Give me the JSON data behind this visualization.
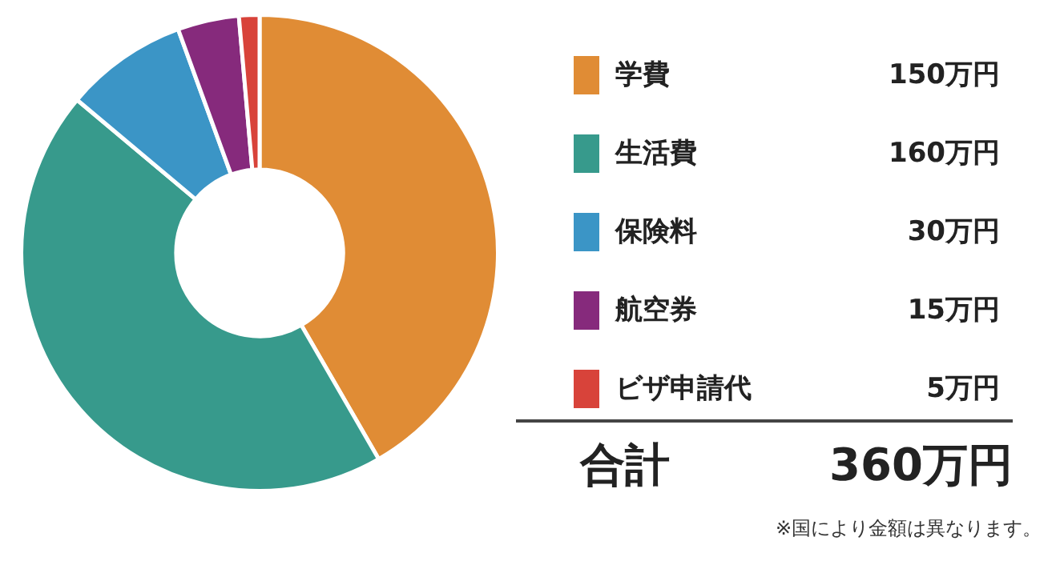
{
  "chart_data": {
    "type": "donut",
    "categories": [
      "学費",
      "生活費",
      "保険料",
      "航空券",
      "ビザ申請代"
    ],
    "values": [
      150,
      160,
      30,
      15,
      5
    ],
    "value_labels": [
      "150万円",
      "160万円",
      "30万円",
      "15万円",
      "5万円"
    ],
    "colors": [
      "#e08c35",
      "#379a8c",
      "#3b95c6",
      "#862a7c",
      "#d8433a"
    ],
    "legend": "right",
    "annotations": [
      "合計",
      "360万円",
      "※国により金額は異なります。"
    ]
  }
}
